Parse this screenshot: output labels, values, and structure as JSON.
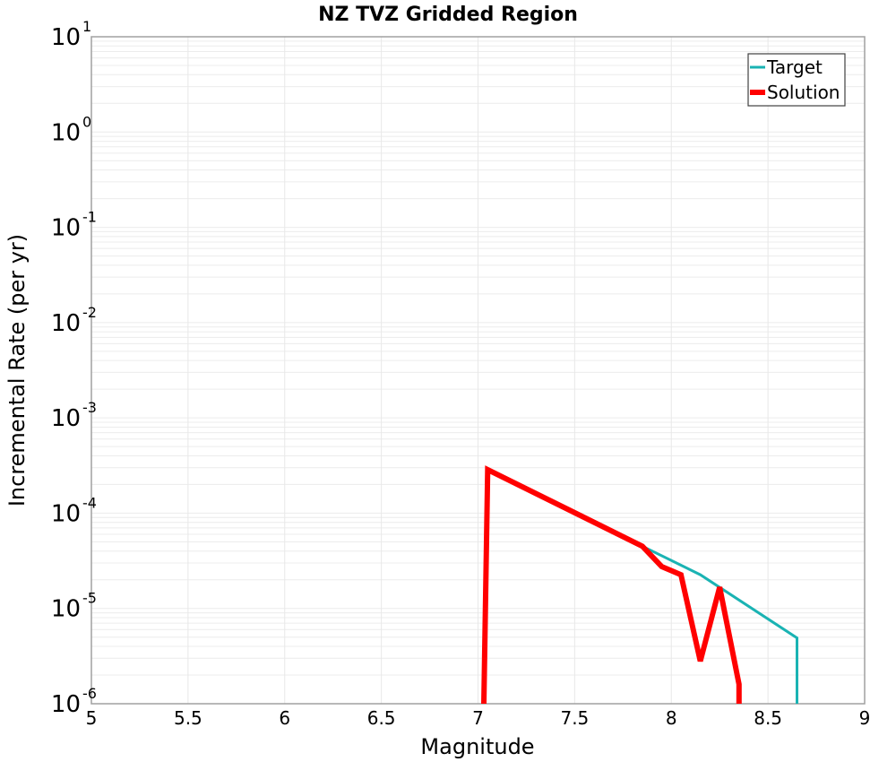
{
  "chart_data": {
    "type": "line",
    "title": "NZ TVZ Gridded Region",
    "xlabel": "Magnitude",
    "ylabel": "Incremental Rate (per yr)",
    "xlim": [
      5,
      9
    ],
    "ylim": [
      1e-06,
      10
    ],
    "yscale": "log",
    "grid": true,
    "legend_position": "upper right",
    "x_ticks": [
      "5",
      "5.5",
      "6",
      "6.5",
      "7",
      "7.5",
      "8",
      "8.5",
      "9"
    ],
    "y_ticks": [
      {
        "base": "10",
        "exp": "1"
      },
      {
        "base": "10",
        "exp": "0"
      },
      {
        "base": "10",
        "exp": "-1"
      },
      {
        "base": "10",
        "exp": "-2"
      },
      {
        "base": "10",
        "exp": "-3"
      },
      {
        "base": "10",
        "exp": "-4"
      },
      {
        "base": "10",
        "exp": "-5"
      },
      {
        "base": "10",
        "exp": "-6"
      }
    ],
    "series": [
      {
        "name": "Target",
        "color": "#1ab3b3",
        "width": 3,
        "x": [
          7.85,
          8.15,
          8.65,
          8.65
        ],
        "y": [
          4.5e-05,
          2.26e-05,
          4.9e-06,
          1e-06
        ]
      },
      {
        "name": "Solution",
        "color": "#ff0000",
        "width": 6,
        "x": [
          7.03,
          7.05,
          7.85,
          7.95,
          8.05,
          8.15,
          8.25,
          8.35,
          8.35
        ],
        "y": [
          1e-06,
          0.000286,
          4.5e-05,
          2.75e-05,
          2.26e-05,
          2.8e-06,
          1.67e-05,
          1.6e-06,
          1e-06
        ]
      }
    ]
  }
}
